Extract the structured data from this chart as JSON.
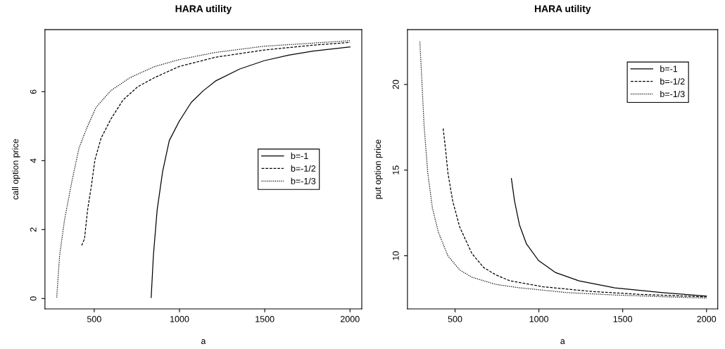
{
  "chart_data": [
    {
      "type": "line",
      "title": "HARA utility",
      "xlabel": "a",
      "ylabel": "call option price",
      "xlim": [
        211,
        2069
      ],
      "ylim": [
        -0.3,
        7.8
      ],
      "xticks": [
        500,
        1000,
        1500,
        2000
      ],
      "yticks": [
        0,
        2,
        4,
        6
      ],
      "legend": "right",
      "grid": false,
      "series": [
        {
          "name": "b=-1",
          "color": "#000000",
          "line_style": "solid",
          "x": [
            834,
            847,
            869,
            901,
            940,
            997,
            1069,
            1140,
            1211,
            1354,
            1497,
            1640,
            1783,
            2000
          ],
          "values": [
            0.03,
            1.25,
            2.57,
            3.68,
            4.58,
            5.13,
            5.69,
            6.03,
            6.31,
            6.66,
            6.9,
            7.06,
            7.18,
            7.3
          ]
        },
        {
          "name": "b=-1/2",
          "color": "#000000",
          "line_style": "dashed",
          "x": [
            426,
            443,
            461,
            483,
            504,
            540,
            597,
            669,
            754,
            854,
            997,
            1211,
            1497,
            1783,
            2000
          ],
          "values": [
            1.54,
            1.73,
            2.57,
            3.26,
            4.02,
            4.65,
            5.2,
            5.76,
            6.14,
            6.41,
            6.73,
            7.0,
            7.21,
            7.35,
            7.43
          ]
        },
        {
          "name": "b=-1/3",
          "color": "#000000",
          "line_style": "dotted",
          "x": [
            280,
            297,
            326,
            369,
            411,
            454,
            511,
            597,
            711,
            854,
            997,
            1211,
            1497,
            1783,
            2000
          ],
          "values": [
            0.03,
            1.25,
            2.29,
            3.4,
            4.37,
            4.92,
            5.55,
            6.03,
            6.41,
            6.73,
            6.93,
            7.14,
            7.32,
            7.41,
            7.48
          ]
        }
      ]
    },
    {
      "type": "line",
      "title": "HARA utility",
      "xlabel": "a",
      "ylabel": "put option price",
      "xlim": [
        216,
        2067
      ],
      "ylim": [
        6.9,
        23.2
      ],
      "xticks": [
        500,
        1000,
        1500,
        2000
      ],
      "yticks": [
        10,
        15,
        20
      ],
      "legend": "top right",
      "grid": false,
      "series": [
        {
          "name": "b=-1",
          "color": "#000000",
          "line_style": "solid",
          "x": [
            836,
            855,
            884,
            926,
            998,
            1097,
            1239,
            1453,
            1737,
            2000
          ],
          "values": [
            14.51,
            13.19,
            11.81,
            10.69,
            9.72,
            9.03,
            8.54,
            8.13,
            7.85,
            7.64
          ]
        },
        {
          "name": "b=-1/2",
          "color": "#000000",
          "line_style": "dashed",
          "x": [
            429,
            443,
            457,
            486,
            528,
            600,
            671,
            742,
            827,
            1026,
            1310,
            1595,
            2000
          ],
          "values": [
            17.43,
            16.25,
            14.86,
            13.19,
            11.67,
            10.14,
            9.31,
            8.89,
            8.54,
            8.19,
            7.92,
            7.75,
            7.6
          ]
        },
        {
          "name": "b=-1/3",
          "color": "#000000",
          "line_style": "dotted",
          "x": [
            290,
            301,
            315,
            337,
            365,
            400,
            457,
            528,
            600,
            742,
            884,
            1168,
            1453,
            1737,
            2000
          ],
          "values": [
            22.5,
            20.42,
            17.64,
            14.86,
            12.78,
            11.39,
            10.0,
            9.17,
            8.75,
            8.33,
            8.13,
            7.85,
            7.71,
            7.61,
            7.53
          ]
        }
      ]
    }
  ]
}
